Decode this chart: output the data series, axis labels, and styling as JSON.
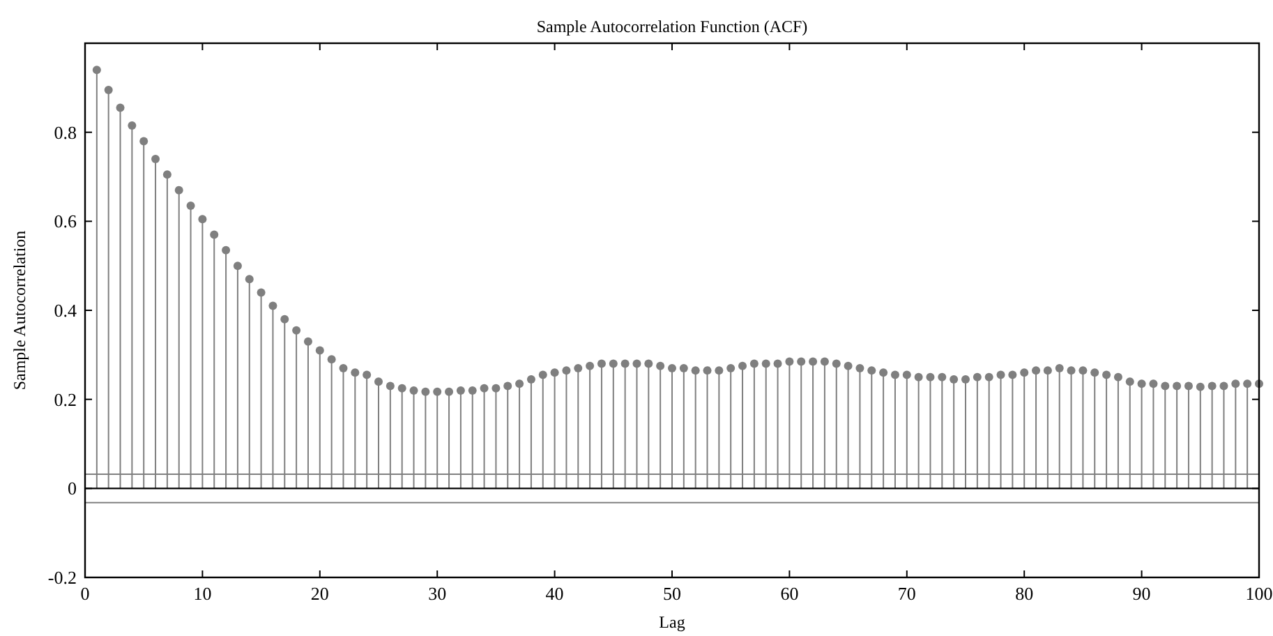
{
  "chart_data": {
    "type": "lollipop",
    "title": "Sample Autocorrelation Function (ACF)",
    "xlabel": "Lag",
    "ylabel": "Sample Autocorrelation",
    "x": [
      1,
      2,
      3,
      4,
      5,
      6,
      7,
      8,
      9,
      10,
      11,
      12,
      13,
      14,
      15,
      16,
      17,
      18,
      19,
      20,
      21,
      22,
      23,
      24,
      25,
      26,
      27,
      28,
      29,
      30,
      31,
      32,
      33,
      34,
      35,
      36,
      37,
      38,
      39,
      40,
      41,
      42,
      43,
      44,
      45,
      46,
      47,
      48,
      49,
      50,
      51,
      52,
      53,
      54,
      55,
      56,
      57,
      58,
      59,
      60,
      61,
      62,
      63,
      64,
      65,
      66,
      67,
      68,
      69,
      70,
      71,
      72,
      73,
      74,
      75,
      76,
      77,
      78,
      79,
      80,
      81,
      82,
      83,
      84,
      85,
      86,
      87,
      88,
      89,
      90,
      91,
      92,
      93,
      94,
      95,
      96,
      97,
      98,
      99,
      100
    ],
    "series": [
      {
        "color": "#7f7f7f",
        "values": [
          0.94,
          0.895,
          0.855,
          0.815,
          0.78,
          0.74,
          0.705,
          0.67,
          0.635,
          0.605,
          0.57,
          0.535,
          0.5,
          0.47,
          0.44,
          0.41,
          0.38,
          0.355,
          0.33,
          0.31,
          0.29,
          0.27,
          0.26,
          0.255,
          0.24,
          0.23,
          0.225,
          0.22,
          0.217,
          0.217,
          0.217,
          0.22,
          0.22,
          0.225,
          0.225,
          0.23,
          0.235,
          0.245,
          0.255,
          0.26,
          0.265,
          0.27,
          0.275,
          0.28,
          0.28,
          0.28,
          0.28,
          0.28,
          0.275,
          0.27,
          0.27,
          0.265,
          0.265,
          0.265,
          0.27,
          0.275,
          0.28,
          0.28,
          0.28,
          0.285,
          0.285,
          0.285,
          0.285,
          0.28,
          0.275,
          0.27,
          0.265,
          0.26,
          0.255,
          0.255,
          0.25,
          0.25,
          0.25,
          0.245,
          0.245,
          0.25,
          0.25,
          0.255,
          0.255,
          0.26,
          0.265,
          0.265,
          0.27,
          0.265,
          0.265,
          0.26,
          0.255,
          0.25,
          0.24,
          0.235,
          0.235,
          0.23,
          0.23,
          0.23,
          0.228,
          0.23,
          0.23,
          0.235,
          0.235,
          0.235
        ]
      }
    ],
    "xlim": [
      0,
      100
    ],
    "xticks": [
      0,
      10,
      20,
      30,
      40,
      50,
      60,
      70,
      80,
      90,
      100
    ],
    "ylim": [
      -0.2,
      1
    ],
    "yticks": [
      -0.2,
      0,
      0.2,
      0.4,
      0.6,
      0.8
    ],
    "ref_lines": [
      {
        "axis": "y",
        "value": 0.032,
        "color": "#808080"
      },
      {
        "axis": "y",
        "value": -0.032,
        "color": "#808080"
      }
    ],
    "marker": "circle"
  }
}
